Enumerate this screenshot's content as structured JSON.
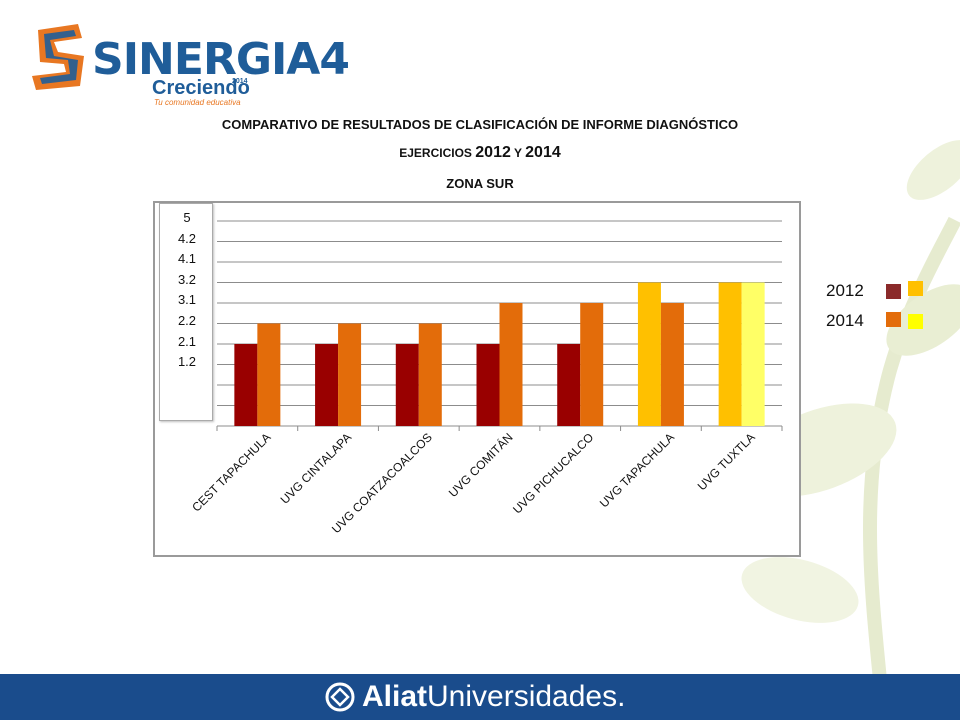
{
  "brand": {
    "logo_main": "SINERGIA",
    "logo_digit": "4",
    "logo_year": "2014",
    "logo_sub": "Creciendo",
    "logo_tag": "Tu comunidad educativa",
    "footer_bold": "Aliat",
    "footer_regular": "Universidades."
  },
  "header": {
    "title": "COMPARATIVO DE RESULTADOS DE CLASIFICACIÓN DE INFORME DIAGNÓSTICO",
    "subtitle_a": "EJERCICIOS",
    "subtitle_b": "2012",
    "subtitle_c": "Y",
    "subtitle_d": "2014",
    "zone": "ZONA SUR"
  },
  "scale_labels": [
    "5",
    "4.2",
    "4.1",
    "3.2",
    "3.1",
    "2.2",
    "2.1",
    "1.2"
  ],
  "legend": {
    "items": [
      {
        "label": "2012",
        "colors": [
          "#8b2a2a",
          "#ffc000"
        ]
      },
      {
        "label": "2014",
        "colors": [
          "#e36c0a",
          "#ffff00"
        ]
      }
    ]
  },
  "chart_data": {
    "type": "bar",
    "categories": [
      "CEST TAPACHULA",
      "UVG CINTALAPA",
      "UVG COATZACOALCOS",
      "UVG COMITÁN",
      "UVG PICHUCALCO",
      "UVG TAPACHULA",
      "UVG TUXTLA"
    ],
    "series": [
      {
        "name": "2012",
        "values": [
          4,
          4,
          4,
          4,
          4,
          7,
          7
        ],
        "colors": [
          "#990000",
          "#990000",
          "#990000",
          "#990000",
          "#990000",
          "#ffc000",
          "#ffc000"
        ]
      },
      {
        "name": "2014",
        "values": [
          5,
          5,
          5,
          6,
          6,
          6,
          7
        ],
        "colors": [
          "#e36c0a",
          "#e36c0a",
          "#e36c0a",
          "#e36c0a",
          "#e36c0a",
          "#e36c0a",
          "#ffff66"
        ]
      }
    ],
    "ylim": [
      0,
      10
    ],
    "grid": true,
    "legend_position": "right"
  }
}
